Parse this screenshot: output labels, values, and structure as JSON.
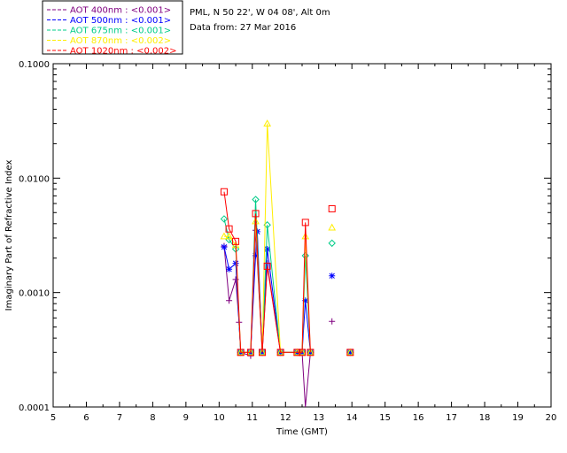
{
  "header": {
    "lines": [
      "PML, N 50 22', W 04 08', Alt 0m",
      "Data from: 27 Mar 2016"
    ]
  },
  "chart_data": {
    "type": "scatter",
    "xlabel": "Time (GMT)",
    "ylabel": "Imaginary Part of Refractive Index",
    "xlim": [
      5,
      20
    ],
    "ylim": [
      0.0001,
      0.1
    ],
    "yscale": "log",
    "x_ticks": [
      "5",
      "6",
      "7",
      "8",
      "9",
      "10",
      "11",
      "12",
      "13",
      "14",
      "15",
      "16",
      "17",
      "18",
      "19",
      "20"
    ],
    "y_ticks": [
      "0.0001",
      "0.0010",
      "0.0100",
      "0.1000"
    ],
    "grid": false,
    "legend_position": "top-left outside",
    "series": [
      {
        "name": "AOT  400nm : <0.001>",
        "color": "#800080",
        "marker": "plus",
        "points": [
          [
            10.15,
            0.00255
          ],
          [
            10.3,
            0.00085
          ],
          [
            10.5,
            0.0013
          ],
          [
            10.6,
            0.00055
          ],
          [
            10.65,
            0.0003
          ],
          [
            10.95,
            0.00028
          ],
          [
            11.1,
            0.0035
          ],
          [
            11.3,
            0.0003
          ],
          [
            11.45,
            0.0018
          ],
          [
            11.85,
            0.0003
          ],
          [
            12.35,
            0.0003
          ],
          [
            12.5,
            0.0003
          ],
          [
            12.6,
            9e-05
          ],
          [
            12.75,
            0.0003
          ],
          [
            13.4,
            0.00056
          ],
          [
            13.95,
            0.0003
          ]
        ],
        "connect_until": 13
      },
      {
        "name": "AOT  500nm : <0.001>",
        "color": "#0000ff",
        "marker": "asterisk",
        "points": [
          [
            10.15,
            0.0025
          ],
          [
            10.3,
            0.0016
          ],
          [
            10.5,
            0.0018
          ],
          [
            10.65,
            0.0003
          ],
          [
            10.95,
            0.0003
          ],
          [
            11.1,
            0.0021
          ],
          [
            11.15,
            0.0034
          ],
          [
            11.3,
            0.0003
          ],
          [
            11.45,
            0.0024
          ],
          [
            11.85,
            0.0003
          ],
          [
            12.35,
            0.0003
          ],
          [
            12.5,
            0.0003
          ],
          [
            12.6,
            0.00085
          ],
          [
            12.75,
            0.0003
          ],
          [
            13.4,
            0.0014
          ],
          [
            13.95,
            0.0003
          ]
        ],
        "connect_until": 13
      },
      {
        "name": "AOT  675nm : <0.001>",
        "color": "#00cc88",
        "marker": "diamond",
        "points": [
          [
            10.15,
            0.0044
          ],
          [
            10.3,
            0.0029
          ],
          [
            10.5,
            0.0024
          ],
          [
            10.65,
            0.0003
          ],
          [
            10.95,
            0.0003
          ],
          [
            11.1,
            0.0065
          ],
          [
            11.3,
            0.0003
          ],
          [
            11.45,
            0.0039
          ],
          [
            11.85,
            0.0003
          ],
          [
            12.35,
            0.0003
          ],
          [
            12.5,
            0.0003
          ],
          [
            12.6,
            0.0021
          ],
          [
            12.75,
            0.0003
          ],
          [
            13.4,
            0.0027
          ],
          [
            13.95,
            0.0003
          ]
        ],
        "connect_until": 13
      },
      {
        "name": "AOT  870nm : <0.002>",
        "color": "#ffee00",
        "marker": "triangle",
        "points": [
          [
            10.15,
            0.0031
          ],
          [
            10.3,
            0.0031
          ],
          [
            10.5,
            0.0026
          ],
          [
            10.65,
            0.0003
          ],
          [
            10.95,
            0.0003
          ],
          [
            11.1,
            0.0042
          ],
          [
            11.3,
            0.0003
          ],
          [
            11.45,
            0.03
          ],
          [
            11.85,
            0.0003
          ],
          [
            12.35,
            0.0003
          ],
          [
            12.5,
            0.0003
          ],
          [
            12.6,
            0.0031
          ],
          [
            12.75,
            0.0003
          ],
          [
            13.4,
            0.0037
          ],
          [
            13.95,
            0.0003
          ]
        ],
        "connect_until": 13
      },
      {
        "name": "AOT 1020nm : <0.002>",
        "color": "#ff0000",
        "marker": "square",
        "points": [
          [
            10.15,
            0.0076
          ],
          [
            10.3,
            0.0036
          ],
          [
            10.5,
            0.0028
          ],
          [
            10.65,
            0.0003
          ],
          [
            10.95,
            0.0003
          ],
          [
            11.1,
            0.0049
          ],
          [
            11.3,
            0.0003
          ],
          [
            11.45,
            0.0017
          ],
          [
            11.85,
            0.0003
          ],
          [
            12.35,
            0.0003
          ],
          [
            12.5,
            0.0003
          ],
          [
            12.6,
            0.0041
          ],
          [
            12.75,
            0.0003
          ],
          [
            13.4,
            0.0054
          ],
          [
            13.95,
            0.0003
          ]
        ],
        "connect_until": 13
      }
    ]
  }
}
